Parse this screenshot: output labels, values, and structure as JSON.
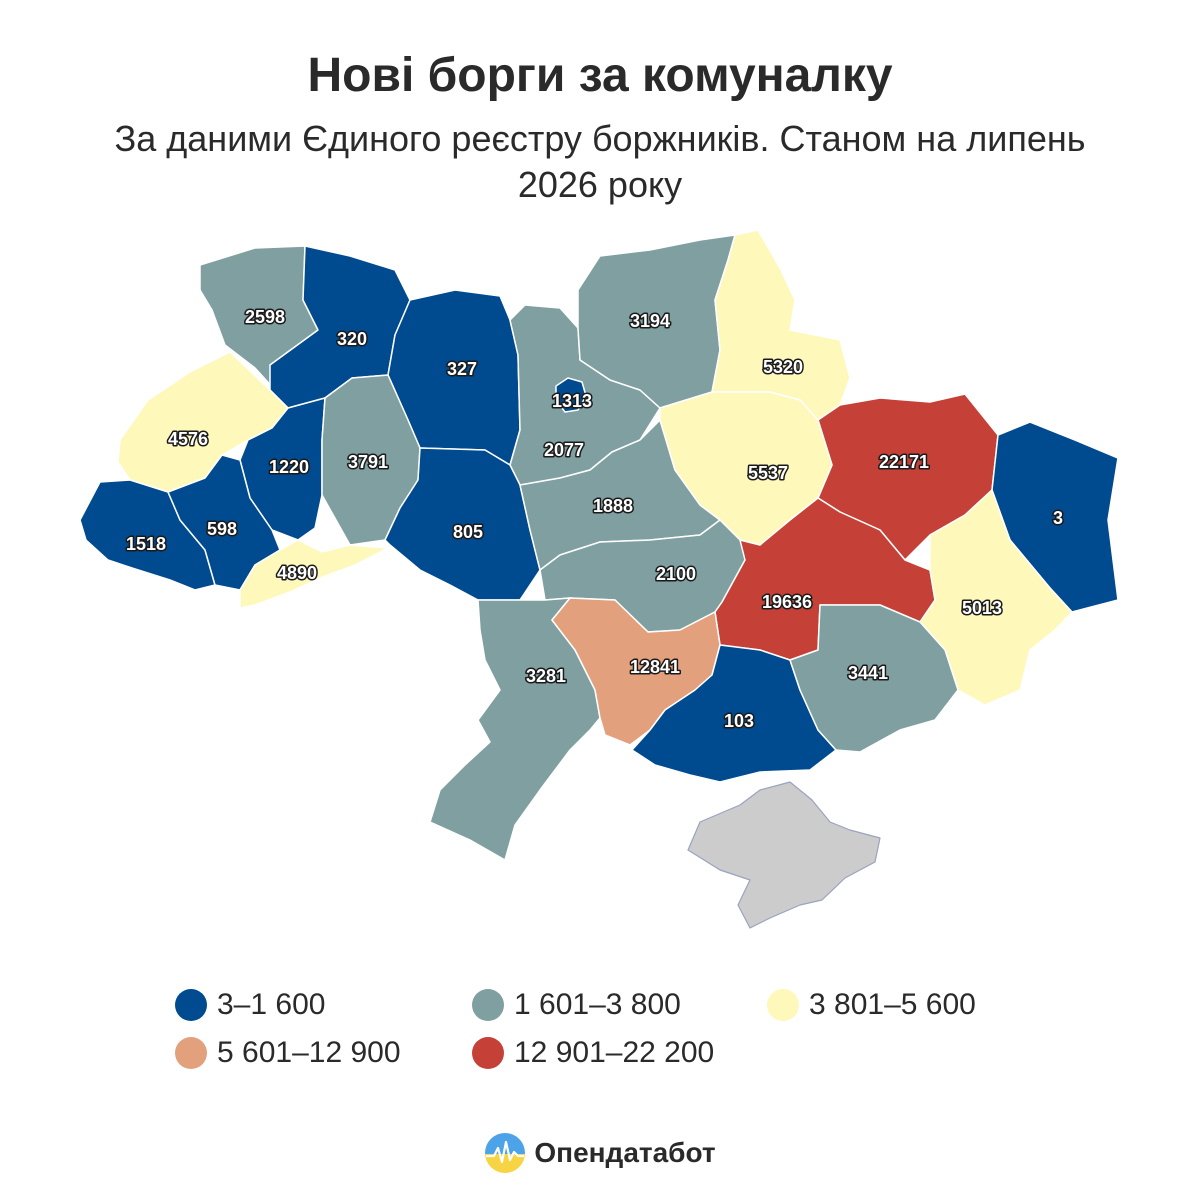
{
  "title": "Нові борги за комуналку",
  "subtitle": "За даними Єдиного реєстру боржників. Станом на липень 2026 року",
  "colors": {
    "dark_blue": "#004a8f",
    "grey_teal": "#7f9fa1",
    "light_yellow": "#fef8bb",
    "salmon": "#e3a07d",
    "red": "#c54137",
    "occupied_grey": "#cccccc"
  },
  "legend": [
    {
      "label": "3–1 600",
      "color": "#004a8f"
    },
    {
      "label": "1 601–3 800",
      "color": "#7f9fa1"
    },
    {
      "label": "3 801–5 600",
      "color": "#fef8bb"
    },
    {
      "label": "5 601–12 900",
      "color": "#e3a07d"
    },
    {
      "label": "12 901–22 200",
      "color": "#c54137"
    }
  ],
  "regions": [
    {
      "id": "volyn",
      "value": "2598",
      "color": "#7f9fa1"
    },
    {
      "id": "rivne",
      "value": "320",
      "color": "#004a8f"
    },
    {
      "id": "zhytomyr",
      "value": "327",
      "color": "#004a8f"
    },
    {
      "id": "kyiv-oblast",
      "value": "2077",
      "color": "#7f9fa1"
    },
    {
      "id": "kyiv-city",
      "value": "1313",
      "color": "#004a8f"
    },
    {
      "id": "chernihiv",
      "value": "3194",
      "color": "#7f9fa1"
    },
    {
      "id": "sumy",
      "value": "5320",
      "color": "#fef8bb"
    },
    {
      "id": "kharkiv",
      "value": "22171",
      "color": "#c54137"
    },
    {
      "id": "luhansk",
      "value": "3",
      "color": "#004a8f"
    },
    {
      "id": "lviv",
      "value": "4576",
      "color": "#fef8bb"
    },
    {
      "id": "ternopil",
      "value": "1220",
      "color": "#004a8f"
    },
    {
      "id": "khmelnytskyi",
      "value": "3791",
      "color": "#7f9fa1"
    },
    {
      "id": "vinnytsia",
      "value": "805",
      "color": "#004a8f"
    },
    {
      "id": "cherkasy",
      "value": "1888",
      "color": "#7f9fa1"
    },
    {
      "id": "poltava",
      "value": "5537",
      "color": "#fef8bb"
    },
    {
      "id": "zakarpattia",
      "value": "1518",
      "color": "#004a8f"
    },
    {
      "id": "ivano-frankivsk",
      "value": "598",
      "color": "#004a8f"
    },
    {
      "id": "chernivtsi",
      "value": "4890",
      "color": "#fef8bb"
    },
    {
      "id": "kirovohrad",
      "value": "2100",
      "color": "#7f9fa1"
    },
    {
      "id": "dnipro",
      "value": "19636",
      "color": "#c54137"
    },
    {
      "id": "donetsk",
      "value": "5013",
      "color": "#fef8bb"
    },
    {
      "id": "odesa",
      "value": "3281",
      "color": "#7f9fa1"
    },
    {
      "id": "mykolaiv",
      "value": "12841",
      "color": "#e3a07d"
    },
    {
      "id": "kherson",
      "value": "103",
      "color": "#004a8f"
    },
    {
      "id": "zaporizhzhia",
      "value": "3441",
      "color": "#7f9fa1"
    },
    {
      "id": "crimea",
      "value": "",
      "color": "#cccccc"
    }
  ],
  "brand": {
    "name": "Опендатабот",
    "logo_icon": "opendatabot-logo-icon"
  }
}
